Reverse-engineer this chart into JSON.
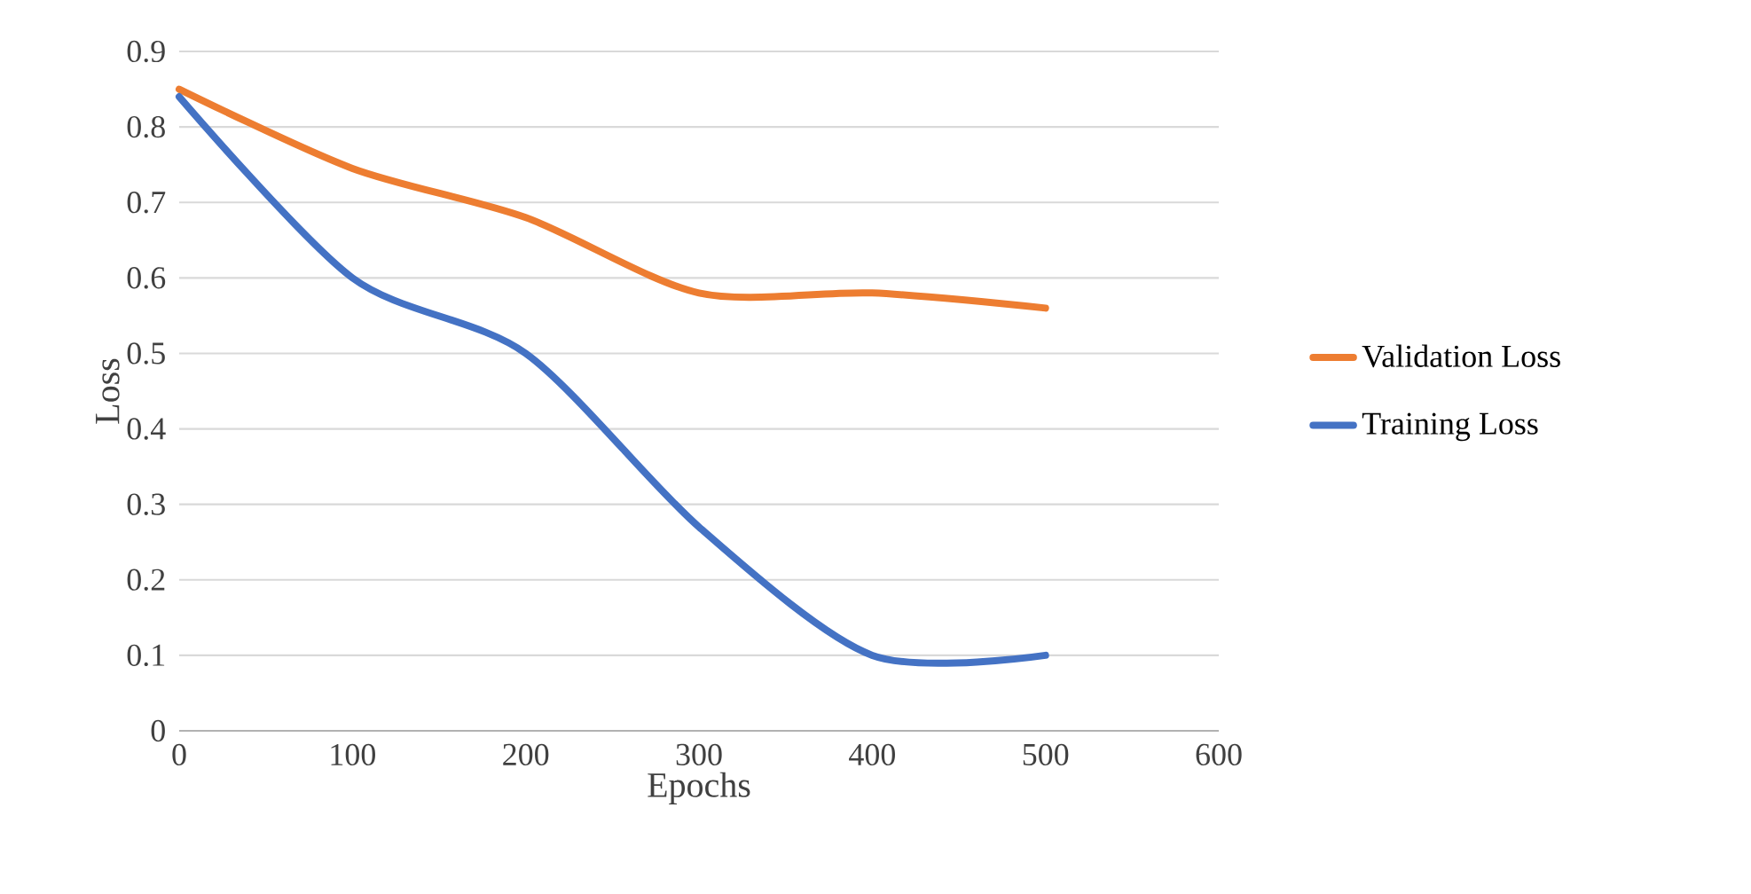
{
  "chart_data": {
    "type": "line",
    "xlabel": "Epochs",
    "ylabel": "Loss",
    "x": [
      0,
      100,
      200,
      300,
      400,
      500
    ],
    "series": [
      {
        "name": "Validation Loss",
        "color": "#ed7d31",
        "values": [
          0.85,
          0.745,
          0.68,
          0.58,
          0.58,
          0.56
        ]
      },
      {
        "name": "Training Loss",
        "color": "#4472c4",
        "values": [
          0.84,
          0.6,
          0.5,
          0.27,
          0.1,
          0.1
        ]
      }
    ],
    "xlim": [
      0,
      600
    ],
    "ylim": [
      0,
      0.9
    ],
    "xticks": [
      0,
      100,
      200,
      300,
      400,
      500,
      600
    ],
    "yticks": [
      0,
      0.1,
      0.2,
      0.3,
      0.4,
      0.5,
      0.6,
      0.7,
      0.8,
      0.9
    ],
    "grid": "y",
    "legend": "right"
  }
}
